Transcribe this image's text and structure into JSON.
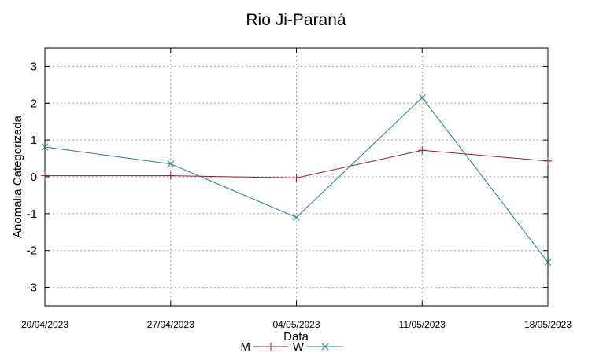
{
  "chart_data": {
    "type": "line",
    "title": "Rio Ji-Paraná",
    "xlabel": "Data",
    "ylabel": "Anomalia Categorizada",
    "categories": [
      "20/04/2023",
      "27/04/2023",
      "04/05/2023",
      "11/05/2023",
      "18/05/2023"
    ],
    "yticks": [
      3,
      2,
      1,
      0,
      -1,
      -2,
      -3
    ],
    "ylim": [
      -3.5,
      3.5
    ],
    "grid": true,
    "legend_position": "bottom-center",
    "series": [
      {
        "name": "M",
        "color": "#a0182e",
        "marker": "plus",
        "values": [
          0.03,
          0.03,
          -0.03,
          0.72,
          0.43
        ]
      },
      {
        "name": "W",
        "color": "#1f7f8a",
        "marker": "x",
        "values": [
          0.81,
          0.35,
          -1.1,
          2.15,
          -2.32
        ]
      }
    ]
  }
}
